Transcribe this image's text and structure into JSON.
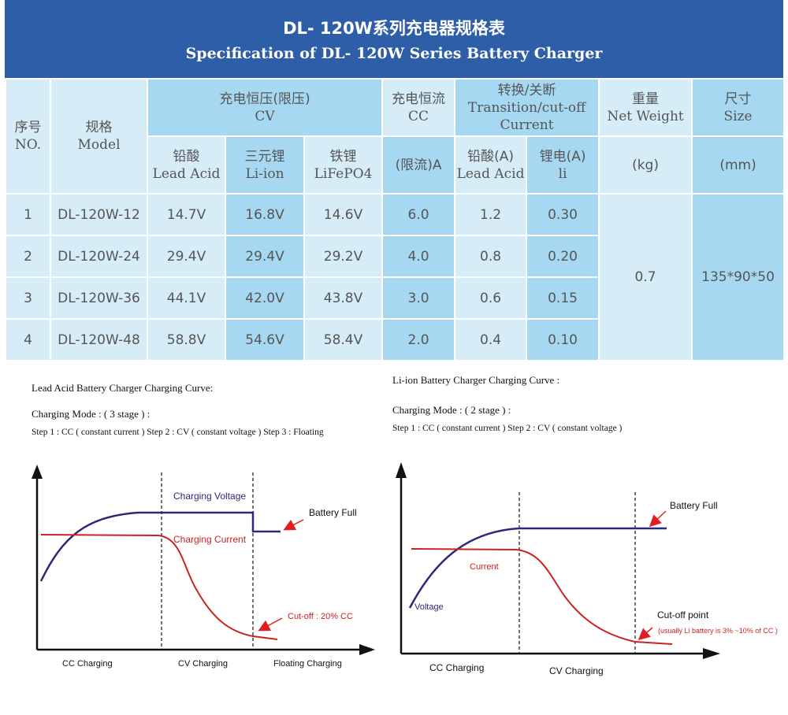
{
  "header": {
    "title_cn": "DL- 120W系列充电器规格表",
    "title_en": "Specification of DL- 120W Series Battery Charger"
  },
  "table": {
    "col_no": {
      "cn": "序号",
      "en": "NO."
    },
    "col_model": {
      "cn": "规格",
      "en": "Model"
    },
    "col_cv": {
      "cn": "充电恒压(限压)",
      "en": "CV"
    },
    "col_cc": {
      "cn": "充电恒流",
      "en": "CC"
    },
    "col_transition": {
      "cn": "转换/关断",
      "en1": "Transition/cut-off",
      "en2": "Current"
    },
    "col_weight": {
      "cn": "重量",
      "en": "Net Weight"
    },
    "col_size": {
      "cn": "尺寸",
      "en": "Size"
    },
    "sub_lead": {
      "cn": "铅酸",
      "en": "Lead Acid"
    },
    "sub_liion": {
      "cn": "三元锂",
      "en": "Li-ion"
    },
    "sub_lifepo4": {
      "cn": "铁锂",
      "en": "LiFePO4"
    },
    "sub_cc_unit": "(限流)A",
    "sub_lead_a": {
      "cn": "铅酸(A)",
      "en": "Lead Acid"
    },
    "sub_li_a": {
      "cn": "锂电(A)",
      "en": "li"
    },
    "sub_weight_unit": "(kg)",
    "sub_size_unit": "(mm)",
    "weight": "0.7",
    "size": "135*90*50",
    "rows": [
      {
        "no": "1",
        "model": "DL-120W-12",
        "lead": "14.7V",
        "liion": "16.8V",
        "lifepo4": "14.6V",
        "cc": "6.0",
        "lead_a": "1.2",
        "li_a": "0.30"
      },
      {
        "no": "2",
        "model": "DL-120W-24",
        "lead": "29.4V",
        "liion": "29.4V",
        "lifepo4": "29.2V",
        "cc": "4.0",
        "lead_a": "0.8",
        "li_a": "0.20"
      },
      {
        "no": "3",
        "model": "DL-120W-36",
        "lead": "44.1V",
        "liion": "42.0V",
        "lifepo4": "43.8V",
        "cc": "3.0",
        "lead_a": "0.6",
        "li_a": "0.15"
      },
      {
        "no": "4",
        "model": "DL-120W-48",
        "lead": "58.8V",
        "liion": "54.6V",
        "lifepo4": "58.4V",
        "cc": "2.0",
        "lead_a": "0.4",
        "li_a": "0.10"
      }
    ]
  },
  "lead_section": {
    "title": "Lead Acid Battery Charger Charging Curve:",
    "mode": "Charging Mode : ( 3 stage ) :",
    "steps": "Step 1 : CC ( constant current )   Step 2 : CV ( constant voltage )  Step 3 : Floating",
    "voltage_label": "Charging Voltage",
    "current_label": "Charging Current",
    "battery_full": "Battery Full",
    "cutoff": "Cut-off : 20% CC",
    "stage1": "CC Charging",
    "stage2": "CV Charging",
    "stage3": "Floating Charging"
  },
  "li_section": {
    "title": "Li-ion Battery Charger Charging Curve :",
    "mode": "Charging Mode : ( 2 stage ) :",
    "steps": "Step 1 : CC ( constant current )    Step 2 : CV ( constant voltage )",
    "voltage_label": "Voltage",
    "current_label": "Current",
    "battery_full": "Battery Full",
    "cutoff": "Cut-off point",
    "cutoff_note": "(usually Li battery is 3% ~10% of CC )",
    "stage1": "CC Charging",
    "stage2": "CV Charging"
  },
  "colors": {
    "banner": "#2f5ea8",
    "light_cell": "#d6edf8",
    "dark_cell": "#a6d9f1",
    "voltage_line": "#2a2a78",
    "current_line": "#cc2222",
    "arrow": "#e02020"
  }
}
